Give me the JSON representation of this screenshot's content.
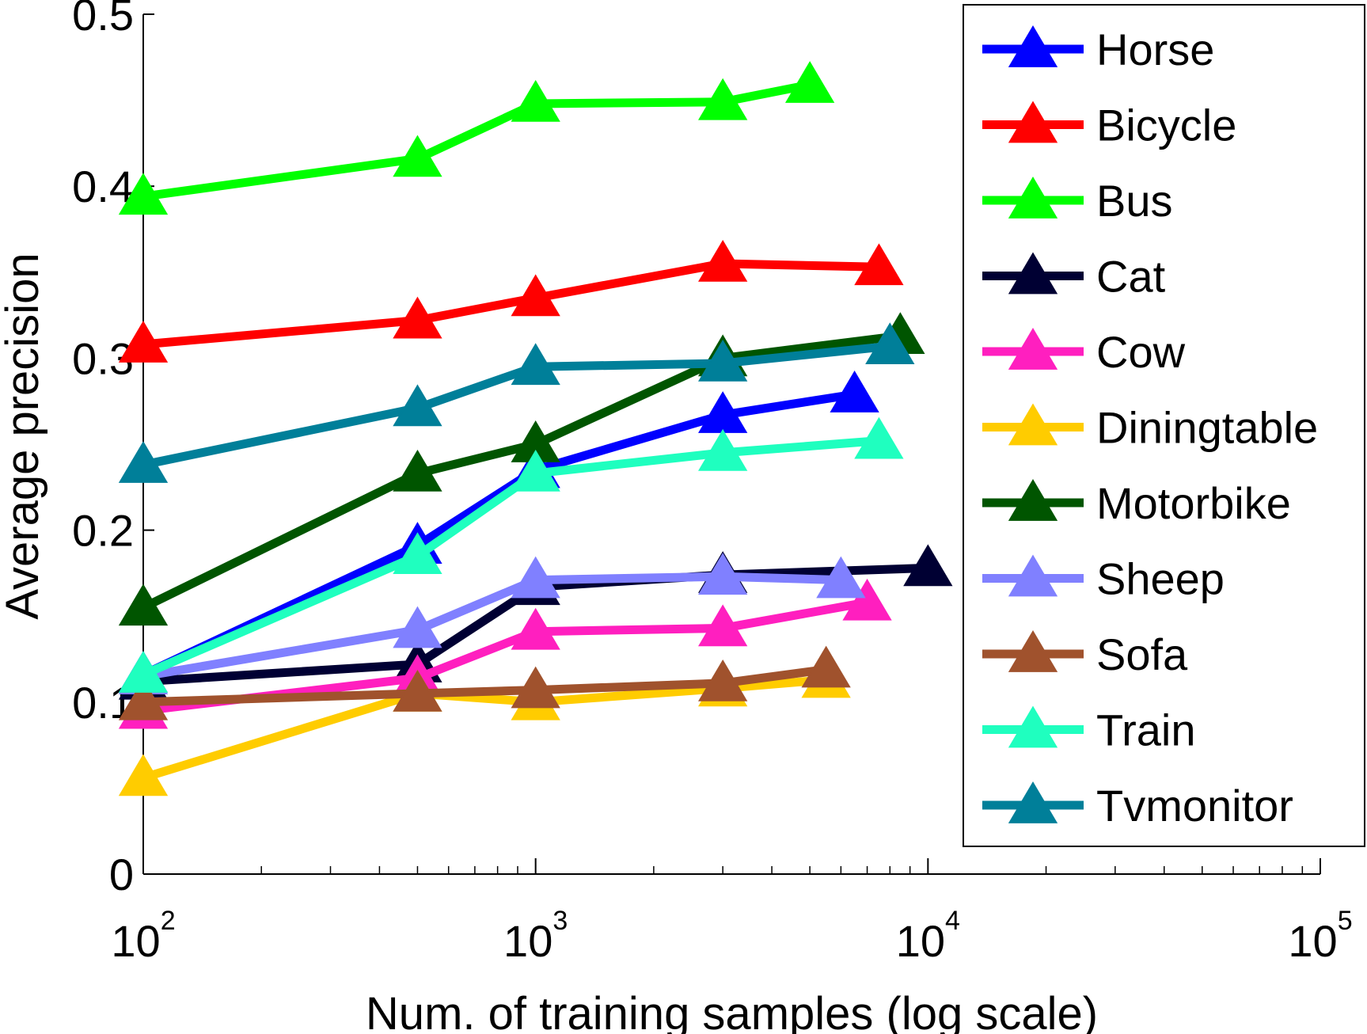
{
  "chart_data": {
    "type": "line",
    "title": "",
    "xlabel": "Num. of training samples (log scale)",
    "ylabel": "Average precision",
    "xscale": "log",
    "xlim": [
      100,
      100000
    ],
    "ylim": [
      0,
      0.5
    ],
    "xticks": [
      {
        "value": 100,
        "base": "10",
        "exp": "2"
      },
      {
        "value": 1000,
        "base": "10",
        "exp": "3"
      },
      {
        "value": 10000,
        "base": "10",
        "exp": "4"
      },
      {
        "value": 100000,
        "base": "10",
        "exp": "5"
      }
    ],
    "yticks": [
      {
        "value": 0,
        "label": "0"
      },
      {
        "value": 0.1,
        "label": "0.1"
      },
      {
        "value": 0.2,
        "label": "0.2"
      },
      {
        "value": 0.3,
        "label": "0.3"
      },
      {
        "value": 0.4,
        "label": "0.4"
      },
      {
        "value": 0.5,
        "label": "0.5"
      }
    ],
    "grid": false,
    "legend_position": "top-right",
    "series": [
      {
        "name": "Horse",
        "color": "#0000ff",
        "x": [
          100,
          500,
          1000,
          3000,
          6500
        ],
        "y": [
          0.116,
          0.191,
          0.235,
          0.267,
          0.279
        ]
      },
      {
        "name": "Bicycle",
        "color": "#ff0000",
        "x": [
          100,
          500,
          1000,
          3000,
          7500
        ],
        "y": [
          0.308,
          0.322,
          0.335,
          0.355,
          0.353
        ]
      },
      {
        "name": "Bus",
        "color": "#00ff00",
        "x": [
          100,
          500,
          1000,
          3000,
          5000
        ],
        "y": [
          0.394,
          0.416,
          0.448,
          0.449,
          0.459
        ]
      },
      {
        "name": "Cat",
        "color": "#000033",
        "x": [
          100,
          500,
          1000,
          3000,
          10000
        ],
        "y": [
          0.112,
          0.122,
          0.167,
          0.174,
          0.178
        ]
      },
      {
        "name": "Cow",
        "color": "#ff1fbf",
        "x": [
          100,
          500,
          1000,
          3000,
          7000
        ],
        "y": [
          0.095,
          0.114,
          0.141,
          0.143,
          0.158
        ]
      },
      {
        "name": "Diningtable",
        "color": "#ffcc00",
        "x": [
          100,
          500,
          1000,
          3000,
          5500
        ],
        "y": [
          0.056,
          0.105,
          0.1,
          0.108,
          0.113
        ]
      },
      {
        "name": "Motorbike",
        "color": "#005500",
        "x": [
          100,
          500,
          1000,
          3000,
          8500
        ],
        "y": [
          0.155,
          0.233,
          0.25,
          0.3,
          0.313
        ]
      },
      {
        "name": "Sheep",
        "color": "#8080ff",
        "x": [
          100,
          500,
          1000,
          3000,
          6000
        ],
        "y": [
          0.115,
          0.142,
          0.171,
          0.173,
          0.171
        ]
      },
      {
        "name": "Sofa",
        "color": "#a0522d",
        "x": [
          100,
          500,
          1000,
          3000,
          5500
        ],
        "y": [
          0.1,
          0.105,
          0.107,
          0.111,
          0.119
        ]
      },
      {
        "name": "Train",
        "color": "#1fffbf",
        "x": [
          100,
          500,
          1000,
          3000,
          7500
        ],
        "y": [
          0.116,
          0.185,
          0.233,
          0.245,
          0.252
        ]
      },
      {
        "name": "Tvmonitor",
        "color": "#007f99",
        "x": [
          100,
          500,
          1000,
          3000,
          8000
        ],
        "y": [
          0.238,
          0.271,
          0.295,
          0.297,
          0.307
        ]
      }
    ]
  }
}
